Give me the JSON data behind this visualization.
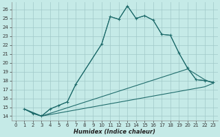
{
  "xlabel": "Humidex (Indice chaleur)",
  "bg_color": "#c5eae7",
  "grid_color": "#a0c8c8",
  "line_color": "#1e6b6b",
  "xlim": [
    -0.5,
    23.5
  ],
  "ylim": [
    13.5,
    26.8
  ],
  "xticks": [
    0,
    1,
    2,
    3,
    4,
    5,
    6,
    7,
    8,
    9,
    10,
    11,
    12,
    13,
    14,
    15,
    16,
    17,
    18,
    19,
    20,
    21,
    22,
    23
  ],
  "yticks": [
    14,
    15,
    16,
    17,
    18,
    19,
    20,
    21,
    22,
    23,
    24,
    25,
    26
  ],
  "line1_x": [
    1,
    2,
    3,
    4,
    5,
    6,
    7,
    10,
    11,
    12,
    13,
    14,
    15,
    16,
    17,
    18,
    19,
    20,
    21,
    22,
    23
  ],
  "line1_y": [
    14.8,
    14.3,
    14.0,
    14.8,
    15.2,
    15.6,
    17.6,
    22.1,
    25.2,
    24.9,
    26.4,
    25.0,
    25.3,
    24.8,
    23.2,
    23.1,
    21.1,
    19.4,
    18.1,
    18.0,
    17.8
  ],
  "line2_x": [
    1,
    2,
    3,
    4,
    5,
    6,
    7,
    10,
    11,
    12,
    13,
    14,
    15,
    16,
    17,
    18,
    19,
    20,
    21,
    22,
    23
  ],
  "line2_y": [
    14.8,
    14.3,
    14.0,
    14.8,
    15.2,
    15.6,
    17.6,
    22.1,
    25.2,
    24.9,
    26.4,
    25.0,
    25.3,
    24.8,
    23.2,
    23.1,
    21.1,
    19.4,
    18.1,
    18.0,
    17.8
  ],
  "line3_x": [
    1,
    3,
    22,
    23
  ],
  "line3_y": [
    14.8,
    14.0,
    17.3,
    17.7
  ],
  "line4_x": [
    1,
    3,
    20,
    22,
    23
  ],
  "line4_y": [
    14.8,
    14.0,
    19.3,
    18.1,
    17.7
  ],
  "xlabel_fontsize": 6,
  "tick_fontsize": 5
}
